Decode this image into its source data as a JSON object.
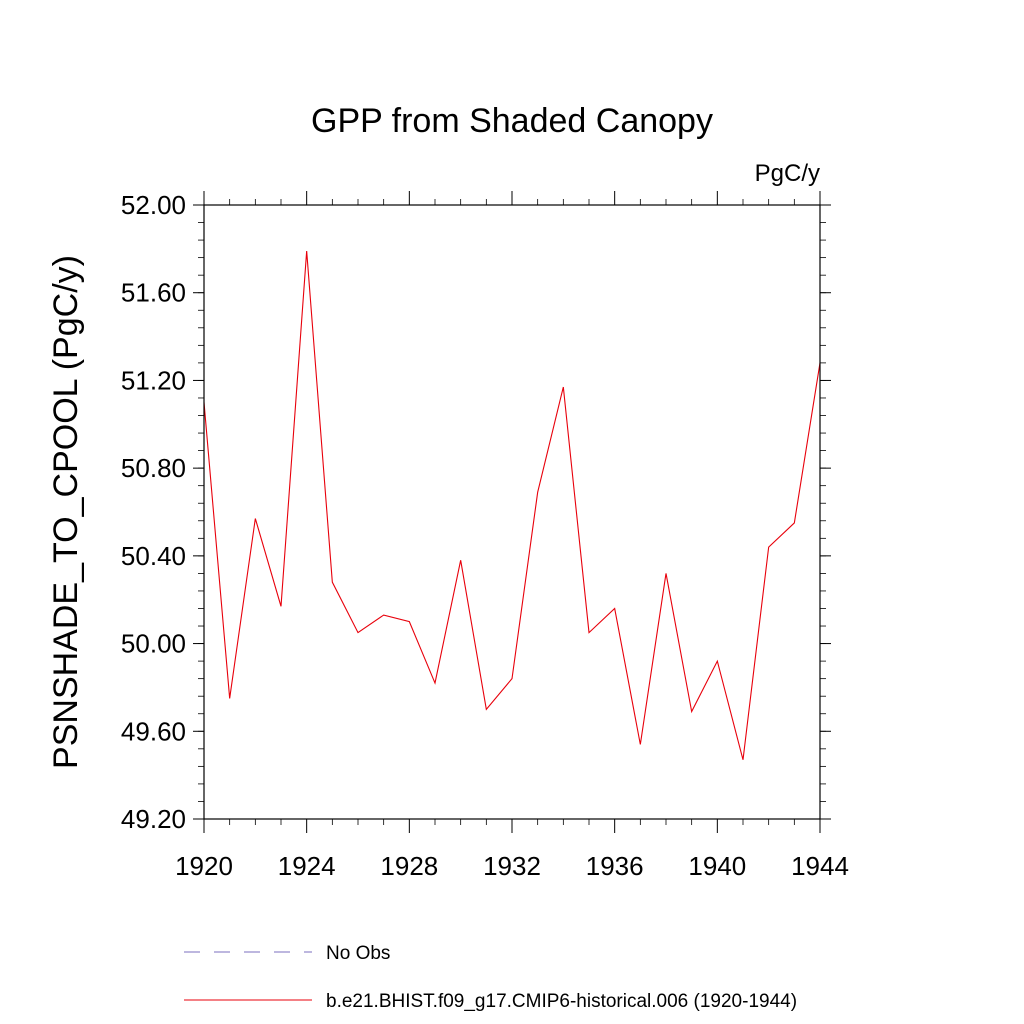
{
  "chart_data": {
    "type": "line",
    "title": "GPP from Shaded Canopy",
    "units_label": "PgC/y",
    "xlabel": "",
    "ylabel": "PSNSHADE_TO_CPOOL  (PgC/y)",
    "xlim": [
      1920,
      1944
    ],
    "ylim": [
      49.2,
      52.0
    ],
    "x_ticks": [
      1920,
      1924,
      1928,
      1932,
      1936,
      1940,
      1944
    ],
    "x_tick_labels": [
      "1920",
      "1924",
      "1928",
      "1932",
      "1936",
      "1940",
      "1944"
    ],
    "y_ticks": [
      49.2,
      49.6,
      50.0,
      50.4,
      50.8,
      51.2,
      51.6,
      52.0
    ],
    "y_tick_labels": [
      "49.20",
      "49.60",
      "50.00",
      "50.40",
      "50.80",
      "51.20",
      "51.60",
      "52.00"
    ],
    "grid": false,
    "series": [
      {
        "name": "b.e21.BHIST.f09_g17.CMIP6-historical.006 (1920-1944)",
        "color": "#e8000b",
        "x": [
          1920,
          1921,
          1922,
          1923,
          1924,
          1925,
          1926,
          1927,
          1928,
          1929,
          1930,
          1931,
          1932,
          1933,
          1934,
          1935,
          1936,
          1937,
          1938,
          1939,
          1940,
          1941,
          1942,
          1943,
          1944
        ],
        "values": [
          51.1,
          49.75,
          50.57,
          50.17,
          51.79,
          50.28,
          50.05,
          50.13,
          50.1,
          49.82,
          50.38,
          49.7,
          49.84,
          50.69,
          51.17,
          50.05,
          50.16,
          49.54,
          50.32,
          49.69,
          49.92,
          49.47,
          50.44,
          50.55,
          51.28
        ]
      }
    ],
    "legend": {
      "placement": "bottom",
      "entries": [
        {
          "label": "No Obs",
          "style": "dashed",
          "color": "#7b6fbf"
        },
        {
          "label": "b.e21.BHIST.f09_g17.CMIP6-historical.006 (1920-1944)",
          "style": "solid",
          "color": "#e8000b"
        }
      ]
    }
  }
}
